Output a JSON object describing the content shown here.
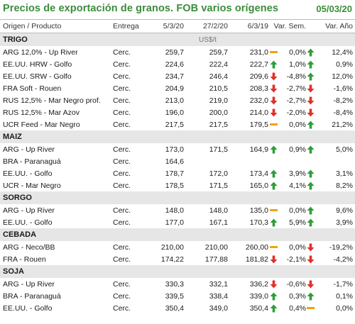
{
  "header": {
    "title": "Precios de exportación de granos. FOB varios orígenes",
    "date": "05/03/20"
  },
  "columns": {
    "origin": "Origen / Producto",
    "delivery": "Entrega",
    "v1": "5/3/20",
    "v2": "27/2/20",
    "v3": "6/3/19",
    "var_week": "Var. Sem.",
    "var_year": "Var. Año"
  },
  "colors": {
    "title": "#3c8c3c",
    "up": "#2e9e3a",
    "down": "#e0302a",
    "flat": "#f0a30a",
    "section_bg": "#e6e6e6"
  },
  "unit": "US$/t",
  "sections": [
    {
      "name": "TRIGO",
      "rows": [
        {
          "name": "ARG 12,0% - Up River",
          "delivery": "Cerc.",
          "v1": "259,7",
          "v2": "259,7",
          "v3": "231,0",
          "ind1": "flat",
          "wk": "0,0%",
          "ind2": "up",
          "yr": "12,4%"
        },
        {
          "name": "EE.UU. HRW - Golfo",
          "delivery": "Cerc.",
          "v1": "224,6",
          "v2": "222,4",
          "v3": "222,7",
          "ind1": "up",
          "wk": "1,0%",
          "ind2": "up",
          "yr": "0,9%"
        },
        {
          "name": "EE.UU. SRW - Golfo",
          "delivery": "Cerc.",
          "v1": "234,7",
          "v2": "246,4",
          "v3": "209,6",
          "ind1": "down",
          "wk": "-4,8%",
          "ind2": "up",
          "yr": "12,0%"
        },
        {
          "name": "FRA Soft - Rouen",
          "delivery": "Cerc.",
          "v1": "204,9",
          "v2": "210,5",
          "v3": "208,3",
          "ind1": "down",
          "wk": "-2,7%",
          "ind2": "down",
          "yr": "-1,6%"
        },
        {
          "name": "RUS 12,5% - Mar Negro prof.",
          "delivery": "Cerc.",
          "v1": "213,0",
          "v2": "219,0",
          "v3": "232,0",
          "ind1": "down",
          "wk": "-2,7%",
          "ind2": "down",
          "yr": "-8,2%"
        },
        {
          "name": "RUS 12,5% - Mar Azov",
          "delivery": "Cerc.",
          "v1": "196,0",
          "v2": "200,0",
          "v3": "214,0",
          "ind1": "down",
          "wk": "-2,0%",
          "ind2": "down",
          "yr": "-8,4%"
        },
        {
          "name": "UCR Feed - Mar Negro",
          "delivery": "Cerc.",
          "v1": "217,5",
          "v2": "217,5",
          "v3": "179,5",
          "ind1": "flat",
          "wk": "0,0%",
          "ind2": "up",
          "yr": "21,2%"
        }
      ]
    },
    {
      "name": "MAIZ",
      "rows": [
        {
          "name": "ARG - Up River",
          "delivery": "Cerc.",
          "v1": "173,0",
          "v2": "171,5",
          "v3": "164,9",
          "ind1": "up",
          "wk": "0,9%",
          "ind2": "up",
          "yr": "5,0%"
        },
        {
          "name": "BRA - Paranaguá",
          "delivery": "Cerc.",
          "v1": "164,6",
          "v2": "",
          "v3": "",
          "ind1": "",
          "wk": "",
          "ind2": "",
          "yr": ""
        },
        {
          "name": "EE.UU. - Golfo",
          "delivery": "Cerc.",
          "v1": "178,7",
          "v2": "172,0",
          "v3": "173,4",
          "ind1": "up",
          "wk": "3,9%",
          "ind2": "up",
          "yr": "3,1%"
        },
        {
          "name": "UCR - Mar Negro",
          "delivery": "Cerc.",
          "v1": "178,5",
          "v2": "171,5",
          "v3": "165,0",
          "ind1": "up",
          "wk": "4,1%",
          "ind2": "up",
          "yr": "8,2%"
        }
      ]
    },
    {
      "name": "SORGO",
      "rows": [
        {
          "name": "ARG - Up River",
          "delivery": "Cerc.",
          "v1": "148,0",
          "v2": "148,0",
          "v3": "135,0",
          "ind1": "flat",
          "wk": "0,0%",
          "ind2": "up",
          "yr": "9,6%"
        },
        {
          "name": "EE.UU. - Golfo",
          "delivery": "Cerc.",
          "v1": "177,0",
          "v2": "167,1",
          "v3": "170,3",
          "ind1": "up",
          "wk": "5,9%",
          "ind2": "up",
          "yr": "3,9%"
        }
      ]
    },
    {
      "name": "CEBADA",
      "rows": [
        {
          "name": "ARG - Neco/BB",
          "delivery": "Cerc.",
          "v1": "210,00",
          "v2": "210,00",
          "v3": "260,00",
          "ind1": "flat",
          "wk": "0,0%",
          "ind2": "down",
          "yr": "-19,2%"
        },
        {
          "name": "FRA - Rouen",
          "delivery": "Cerc.",
          "v1": "174,22",
          "v2": "177,88",
          "v3": "181,82",
          "ind1": "down",
          "wk": "-2,1%",
          "ind2": "down",
          "yr": "-4,2%"
        }
      ]
    },
    {
      "name": "SOJA",
      "rows": [
        {
          "name": "ARG - Up River",
          "delivery": "Cerc.",
          "v1": "330,3",
          "v2": "332,1",
          "v3": "336,2",
          "ind1": "down",
          "wk": "-0,6%",
          "ind2": "down",
          "yr": "-1,7%"
        },
        {
          "name": "BRA - Paranaguá",
          "delivery": "Cerc.",
          "v1": "339,5",
          "v2": "338,4",
          "v3": "339,0",
          "ind1": "up",
          "wk": "0,3%",
          "ind2": "up",
          "yr": "0,1%"
        },
        {
          "name": "EE.UU. - Golfo",
          "delivery": "Cerc.",
          "v1": "350,4",
          "v2": "349,0",
          "v3": "350,4",
          "ind1": "up",
          "wk": "0,4%",
          "ind2": "flat",
          "yr": "0,0%"
        }
      ]
    }
  ]
}
